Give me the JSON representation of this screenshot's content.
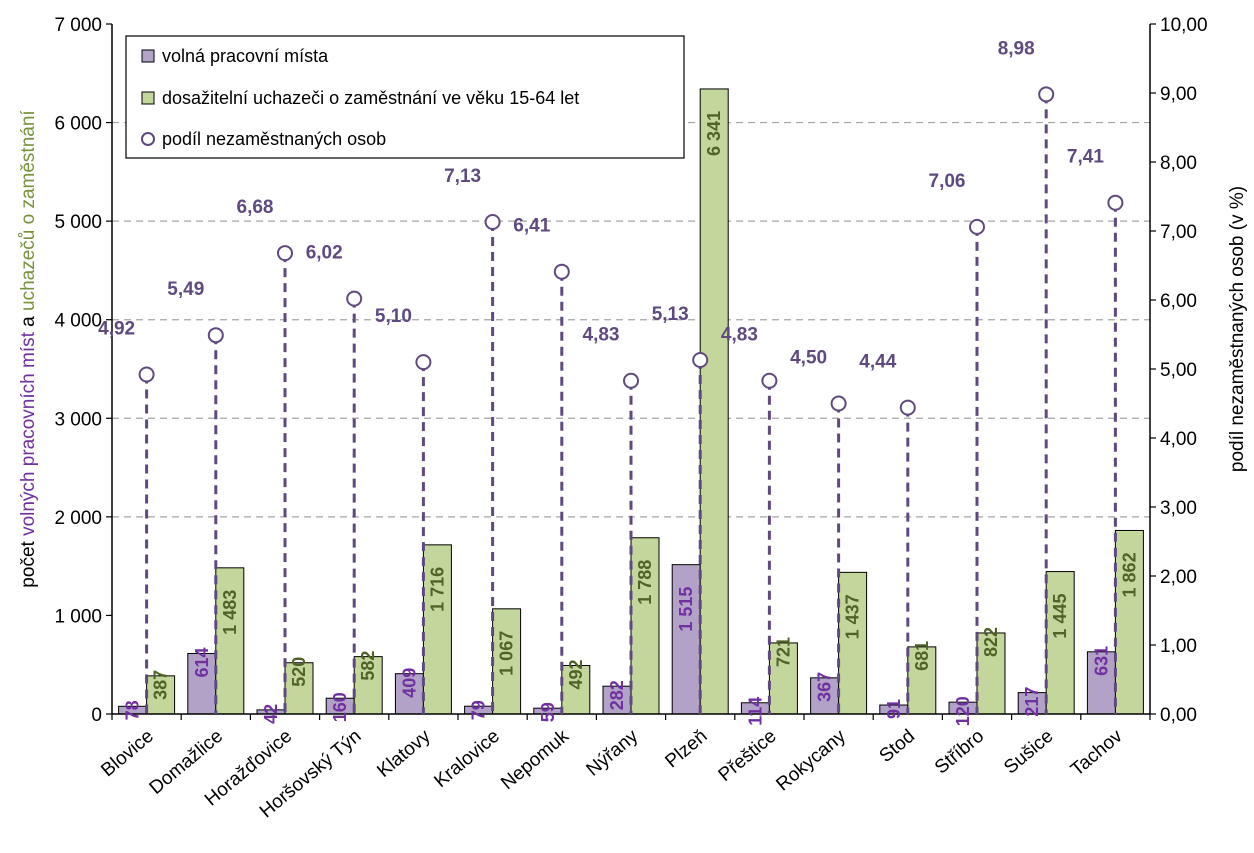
{
  "chart_data": {
    "type": "bar",
    "categories": [
      "Blovice",
      "Domažlice",
      "Horažďovice",
      "Horšovský Týn",
      "Klatovy",
      "Kralovice",
      "Nepomuk",
      "Nýřany",
      "Plzeň",
      "Přeštice",
      "Rokycany",
      "Stod",
      "Stříbro",
      "Sušice",
      "Tachov"
    ],
    "series": [
      {
        "name": "volná pracovní místa",
        "type": "bar",
        "axis": "left",
        "color": "#b3a2c7",
        "label_color": "#7030a0",
        "values": [
          78,
          614,
          42,
          160,
          409,
          79,
          59,
          282,
          1515,
          114,
          367,
          91,
          120,
          217,
          631
        ],
        "labels": [
          "78",
          "614",
          "42",
          "160",
          "409",
          "79",
          "59",
          "282",
          "1 515",
          "114",
          "367",
          "91",
          "120",
          "217",
          "631"
        ]
      },
      {
        "name": "dosažitelní uchazeči o zaměstnání ve věku 15-64 let",
        "type": "bar",
        "axis": "left",
        "color": "#c3d69b",
        "label_color": "#4f6228",
        "values": [
          387,
          1483,
          520,
          582,
          1716,
          1067,
          492,
          1788,
          6341,
          721,
          1437,
          681,
          822,
          1445,
          1862
        ],
        "labels": [
          "387",
          "1 483",
          "520",
          "582",
          "1 716",
          "1 067",
          "492",
          "1 788",
          "6 341",
          "721",
          "1 437",
          "681",
          "822",
          "1 445",
          "1 862"
        ]
      },
      {
        "name": "podíl nezaměstnaných osob",
        "type": "marker",
        "axis": "right",
        "color": "#5f4a80",
        "values": [
          4.92,
          5.49,
          6.68,
          6.02,
          5.1,
          7.13,
          6.41,
          4.83,
          5.13,
          4.83,
          4.5,
          4.44,
          7.06,
          8.98,
          7.41
        ],
        "labels": [
          "4,92",
          "5,49",
          "6,68",
          "6,02",
          "5,10",
          "7,13",
          "6,41",
          "4,83",
          "5,13",
          "4,83",
          "4,50",
          "4,44",
          "7,06",
          "8,98",
          "7,41"
        ]
      }
    ],
    "y_left": {
      "range": [
        0,
        7000
      ],
      "ticks": [
        0,
        1000,
        2000,
        3000,
        4000,
        5000,
        6000,
        7000
      ],
      "tick_labels": [
        "0",
        "1 000",
        "2 000",
        "3 000",
        "4 000",
        "5 000",
        "6 000",
        "7 000"
      ],
      "label_parts": [
        {
          "text": "počet ",
          "color": "#000000"
        },
        {
          "text": "volných pracovních míst",
          "color": "#7030a0"
        },
        {
          "text": " a ",
          "color": "#000000"
        },
        {
          "text": "uchazečů o zaměstnání",
          "color": "#77933c"
        }
      ]
    },
    "y_right": {
      "range": [
        0,
        10
      ],
      "ticks": [
        0,
        1,
        2,
        3,
        4,
        5,
        6,
        7,
        8,
        9,
        10
      ],
      "tick_labels": [
        "0,00",
        "1,00",
        "2,00",
        "3,00",
        "4,00",
        "5,00",
        "6,00",
        "7,00",
        "8,00",
        "9,00",
        "10,00"
      ],
      "label": "podíl nezaměstnaných osob (v %)"
    },
    "gridlines": [
      2000,
      3000,
      4000,
      5000,
      6000
    ],
    "legend_position": "top-left"
  }
}
